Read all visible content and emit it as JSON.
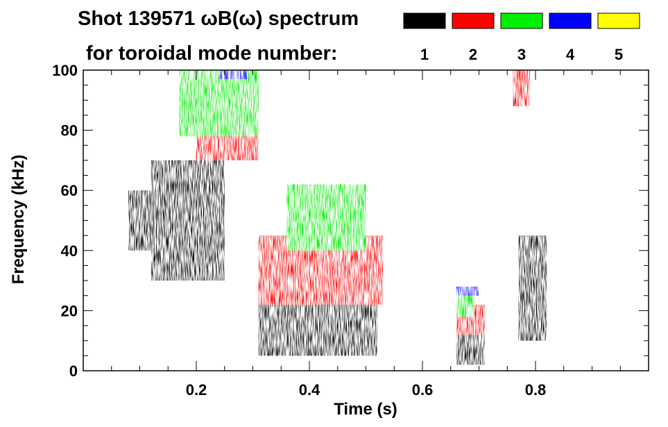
{
  "chart_data": {
    "type": "heatmap",
    "title": "Shot 139571 ωB(ω) spectrum",
    "subtitle": "for toroidal mode number:",
    "xlabel": "Time (s)",
    "ylabel": "Frequency (kHz)",
    "xlim": [
      0.0,
      1.0
    ],
    "ylim": [
      0,
      100
    ],
    "x_ticks": [
      {
        "value": 0.2,
        "label": "0.2"
      },
      {
        "value": 0.4,
        "label": "0.4"
      },
      {
        "value": 0.6,
        "label": "0.6"
      },
      {
        "value": 0.8,
        "label": "0.8"
      }
    ],
    "y_ticks": [
      {
        "value": 0,
        "label": "0"
      },
      {
        "value": 20,
        "label": "20"
      },
      {
        "value": 40,
        "label": "40"
      },
      {
        "value": 60,
        "label": "60"
      },
      {
        "value": 80,
        "label": "80"
      },
      {
        "value": 100,
        "label": "100"
      }
    ],
    "legend": [
      {
        "label": "1",
        "color": "#000000"
      },
      {
        "label": "2",
        "color": "#ff0000"
      },
      {
        "label": "3",
        "color": "#00ee00"
      },
      {
        "label": "4",
        "color": "#0000ff"
      },
      {
        "label": "5",
        "color": "#ffff00"
      }
    ],
    "regions": [
      {
        "mode": 1,
        "t": [
          0.08,
          0.12
        ],
        "f": [
          40,
          60
        ]
      },
      {
        "mode": 1,
        "t": [
          0.12,
          0.25
        ],
        "f": [
          30,
          70
        ]
      },
      {
        "mode": 1,
        "t": [
          0.31,
          0.52
        ],
        "f": [
          5,
          25
        ]
      },
      {
        "mode": 1,
        "t": [
          0.66,
          0.71
        ],
        "f": [
          2,
          12
        ]
      },
      {
        "mode": 1,
        "t": [
          0.77,
          0.82
        ],
        "f": [
          10,
          45
        ]
      },
      {
        "mode": 2,
        "t": [
          0.2,
          0.31
        ],
        "f": [
          70,
          90
        ]
      },
      {
        "mode": 2,
        "t": [
          0.31,
          0.53
        ],
        "f": [
          22,
          45
        ]
      },
      {
        "mode": 2,
        "t": [
          0.66,
          0.71
        ],
        "f": [
          12,
          22
        ]
      },
      {
        "mode": 2,
        "t": [
          0.76,
          0.79
        ],
        "f": [
          88,
          100
        ]
      },
      {
        "mode": 3,
        "t": [
          0.17,
          0.31
        ],
        "f": [
          78,
          100
        ]
      },
      {
        "mode": 3,
        "t": [
          0.36,
          0.5
        ],
        "f": [
          40,
          62
        ]
      },
      {
        "mode": 3,
        "t": [
          0.66,
          0.69
        ],
        "f": [
          18,
          25
        ]
      },
      {
        "mode": 4,
        "t": [
          0.24,
          0.29
        ],
        "f": [
          97,
          100
        ]
      },
      {
        "mode": 4,
        "t": [
          0.66,
          0.7
        ],
        "f": [
          25,
          28
        ]
      }
    ]
  }
}
